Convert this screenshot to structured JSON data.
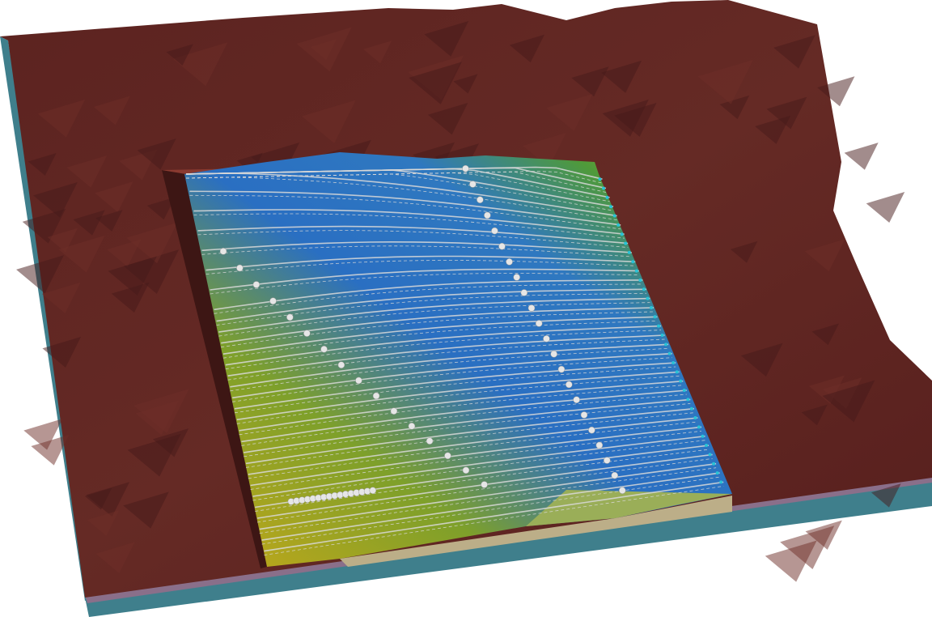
{
  "colors": {
    "background": "#ffffff",
    "terrain": "#5a2420",
    "terrain_light": "#6e2e28",
    "terrain_dark": "#45191a",
    "slab_side": "#3f7f8c",
    "slab_layer": "#8a6f8a",
    "pit_blue": "#2f6fc0",
    "pit_green": "#4f9a3a",
    "pit_yellow": "#c8b020",
    "pit_floor": "#9aae58",
    "streamline": "#d8d8d8",
    "streamline_end": "#29c3d6",
    "well_marker": "#e6e6e6"
  },
  "icons": [
    "terrain-surface",
    "excavation-pit",
    "streamlines",
    "well-markers"
  ]
}
